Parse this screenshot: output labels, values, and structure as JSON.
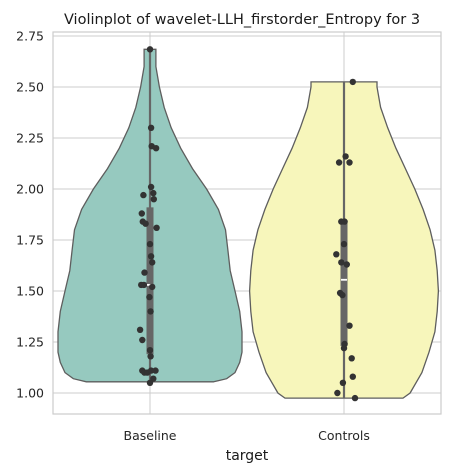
{
  "chart_data": {
    "type": "violin",
    "title": "Violinplot of wavelet-LLH_firstorder_Entropy for 3",
    "xlabel": "target",
    "ylabel": "",
    "ylim": [
      0.9,
      2.78
    ],
    "yticks": [
      "1.00",
      "1.25",
      "1.50",
      "1.75",
      "2.00",
      "2.25",
      "2.50",
      "2.75"
    ],
    "grid": true,
    "categories": [
      "Baseline",
      "Controls"
    ],
    "colors": {
      "Baseline": "#96c9bf",
      "Controls": "#f7f6bb"
    },
    "series": [
      {
        "category": "Baseline",
        "min": 1.055,
        "max": 2.685,
        "q1": 1.19,
        "median": 1.53,
        "q3": 1.91,
        "points": [
          [
            0.0,
            2.685
          ],
          [
            0.02,
            2.3
          ],
          [
            0.03,
            2.21
          ],
          [
            0.11,
            2.2
          ],
          [
            0.02,
            2.01
          ],
          [
            0.06,
            1.98
          ],
          [
            0.07,
            1.95
          ],
          [
            -0.12,
            1.97
          ],
          [
            -0.15,
            1.88
          ],
          [
            -0.13,
            1.84
          ],
          [
            -0.08,
            1.83
          ],
          [
            0.12,
            1.81
          ],
          [
            0.0,
            1.73
          ],
          [
            0.02,
            1.67
          ],
          [
            0.04,
            1.64
          ],
          [
            -0.1,
            1.59
          ],
          [
            -0.16,
            1.53
          ],
          [
            -0.11,
            1.53
          ],
          [
            0.04,
            1.52
          ],
          [
            -0.01,
            1.47
          ],
          [
            0.01,
            1.4
          ],
          [
            -0.18,
            1.31
          ],
          [
            -0.14,
            1.26
          ],
          [
            0.0,
            1.21
          ],
          [
            0.01,
            1.18
          ],
          [
            -0.14,
            1.11
          ],
          [
            -0.1,
            1.1
          ],
          [
            -0.05,
            1.1
          ],
          [
            0.02,
            1.11
          ],
          [
            0.1,
            1.11
          ],
          [
            0.06,
            1.07
          ],
          [
            0.0,
            1.05
          ]
        ],
        "density": [
          [
            1.055,
            0.54
          ],
          [
            1.07,
            0.65
          ],
          [
            1.1,
            0.72
          ],
          [
            1.15,
            0.76
          ],
          [
            1.2,
            0.78
          ],
          [
            1.3,
            0.78
          ],
          [
            1.4,
            0.76
          ],
          [
            1.5,
            0.72
          ],
          [
            1.6,
            0.68
          ],
          [
            1.7,
            0.66
          ],
          [
            1.8,
            0.64
          ],
          [
            1.9,
            0.58
          ],
          [
            2.0,
            0.48
          ],
          [
            2.1,
            0.36
          ],
          [
            2.2,
            0.26
          ],
          [
            2.3,
            0.18
          ],
          [
            2.4,
            0.12
          ],
          [
            2.5,
            0.08
          ],
          [
            2.6,
            0.05
          ],
          [
            2.685,
            0.05
          ]
        ]
      },
      {
        "category": "Controls",
        "min": 0.975,
        "max": 2.525,
        "q1": 1.23,
        "median": 1.555,
        "q3": 1.845,
        "points": [
          [
            0.16,
            2.525
          ],
          [
            0.03,
            2.16
          ],
          [
            0.1,
            2.13
          ],
          [
            -0.09,
            2.13
          ],
          [
            0.01,
            1.84
          ],
          [
            -0.05,
            1.84
          ],
          [
            0.0,
            1.73
          ],
          [
            -0.14,
            1.68
          ],
          [
            -0.05,
            1.64
          ],
          [
            0.05,
            1.63
          ],
          [
            -0.07,
            1.49
          ],
          [
            -0.03,
            1.48
          ],
          [
            0.1,
            1.33
          ],
          [
            0.01,
            1.24
          ],
          [
            0.0,
            1.22
          ],
          [
            0.14,
            1.17
          ],
          [
            0.16,
            1.08
          ],
          [
            -0.02,
            1.05
          ],
          [
            -0.12,
            1.0
          ],
          [
            0.2,
            0.975
          ]
        ],
        "density": [
          [
            0.975,
            0.5
          ],
          [
            1.0,
            0.56
          ],
          [
            1.1,
            0.66
          ],
          [
            1.2,
            0.72
          ],
          [
            1.3,
            0.77
          ],
          [
            1.4,
            0.79
          ],
          [
            1.5,
            0.8
          ],
          [
            1.6,
            0.79
          ],
          [
            1.7,
            0.77
          ],
          [
            1.8,
            0.73
          ],
          [
            1.9,
            0.67
          ],
          [
            2.0,
            0.6
          ],
          [
            2.1,
            0.52
          ],
          [
            2.2,
            0.44
          ],
          [
            2.3,
            0.37
          ],
          [
            2.4,
            0.31
          ],
          [
            2.5,
            0.28
          ],
          [
            2.525,
            0.28
          ]
        ]
      }
    ]
  }
}
